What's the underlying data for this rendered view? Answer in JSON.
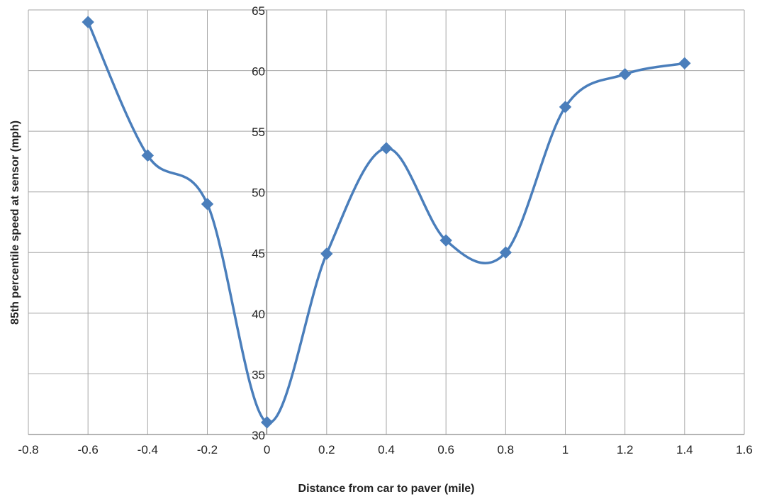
{
  "colors": {
    "series": "#4a7ebb",
    "grid": "#a6a6a6",
    "axis": "#868686",
    "text": "#222222",
    "background": "#ffffff"
  },
  "chart_data": {
    "type": "line",
    "smooth": true,
    "marker": "diamond",
    "title": "",
    "xlabel": "Distance from car to paver (mile)",
    "ylabel": "85th percentile speed at sensor (mph)",
    "xlim": [
      -0.8,
      1.6
    ],
    "ylim": [
      30,
      65
    ],
    "xticks": [
      -0.8,
      -0.6,
      -0.4,
      -0.2,
      0,
      0.2,
      0.4,
      0.6,
      0.8,
      1,
      1.2,
      1.4,
      1.6
    ],
    "yticks": [
      30,
      35,
      40,
      45,
      50,
      55,
      60,
      65
    ],
    "xtick_labels": [
      "-0.8",
      "-0.6",
      "-0.4",
      "-0.2",
      "0",
      "0.2",
      "0.4",
      "0.6",
      "0.8",
      "1",
      "1.2",
      "1.4",
      "1.6"
    ],
    "ytick_labels": [
      "30",
      "35",
      "40",
      "45",
      "50",
      "55",
      "60",
      "65"
    ],
    "grid": true,
    "legend": "none",
    "series": [
      {
        "x": [
          -0.6,
          -0.4,
          -0.2,
          0,
          0.2,
          0.4,
          0.6,
          0.8,
          1,
          1.2,
          1.4
        ],
        "y": [
          64,
          53,
          49,
          31,
          44.9,
          53.6,
          46,
          45,
          57,
          59.7,
          60.6
        ]
      }
    ]
  }
}
